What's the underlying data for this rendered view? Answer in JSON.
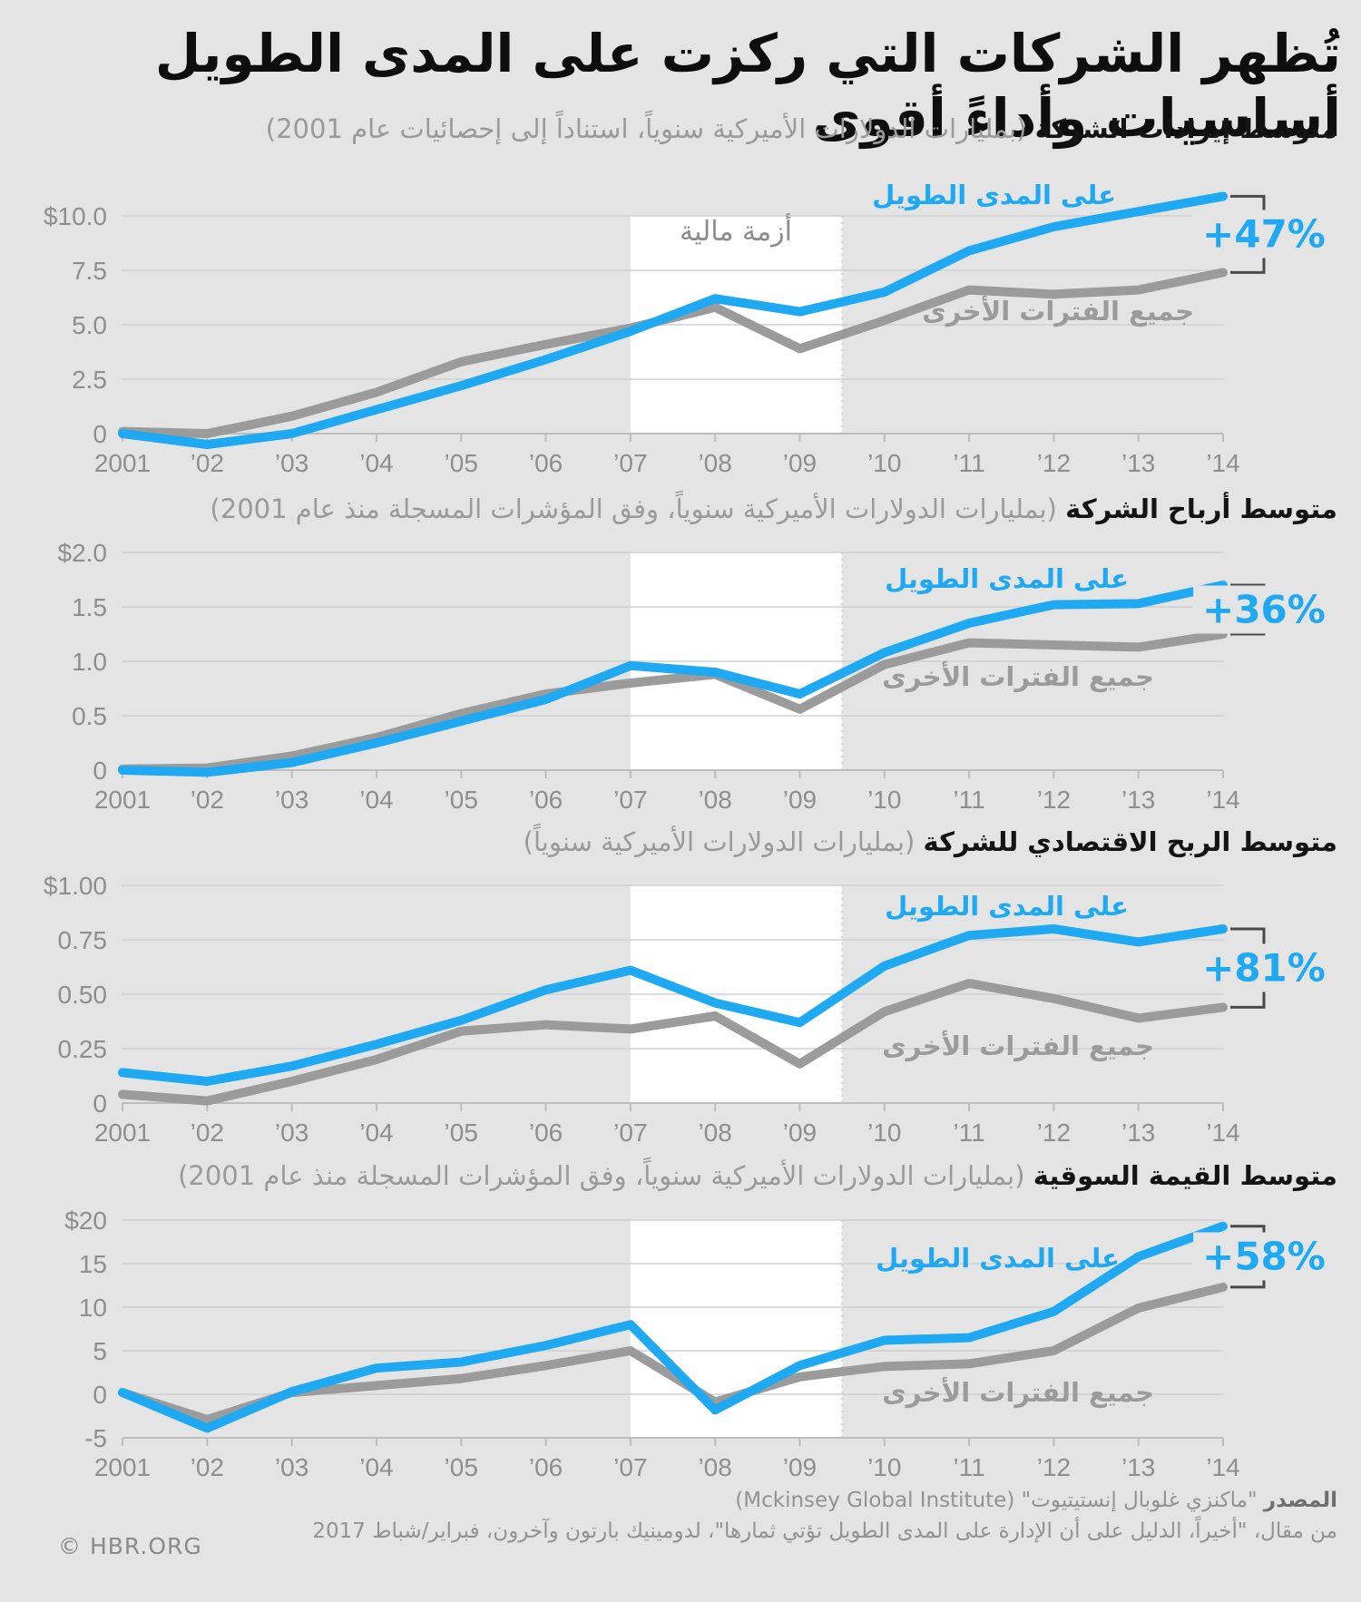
{
  "title": "تُظهر الشركات التي ركزت على المدى الطويل أساسيات وأداءً أقوى",
  "colors": {
    "blue": "#1ea9f2",
    "gray": "#9b9b9b",
    "band": "#ffffff",
    "background": "#e4e4e4",
    "gridline": "#d0d0d0",
    "axis": "#bdbdbd",
    "bracket": "#4a4a4a"
  },
  "chart_data": [
    {
      "type": "line",
      "subtitle_bold": "متوسط إيرادات الشركة",
      "subtitle_note": " (بمليارات الدولارات الأميركية سنوياً، استناداً إلى إحصائيات عام 2001)",
      "x_labels": [
        "2001",
        "’02",
        "’03",
        "’04",
        "’05",
        "’06",
        "’07",
        "’08",
        "’09",
        "’10",
        "’11",
        "’12",
        "’13",
        "’14"
      ],
      "y_ticks": [
        {
          "label": "$10.0",
          "value": 10
        },
        {
          "label": "7.5",
          "value": 7.5
        },
        {
          "label": "5.0",
          "value": 5
        },
        {
          "label": "2.5",
          "value": 2.5
        },
        {
          "label": "0",
          "value": 0
        }
      ],
      "crisis_band": {
        "from_index": 6,
        "to_index": 8.5
      },
      "band_label": "أزمة مالية",
      "series": [
        {
          "name": "على المدى الطويل",
          "color": "blue",
          "values": [
            0,
            -0.5,
            0,
            1.1,
            2.2,
            3.4,
            4.7,
            6.2,
            5.6,
            6.5,
            8.4,
            9.5,
            10.2,
            10.9
          ]
        },
        {
          "name": "جميع الفترات الأخرى",
          "color": "gray",
          "values": [
            0.1,
            0,
            0.8,
            1.9,
            3.3,
            4.1,
            4.85,
            5.8,
            3.9,
            5.2,
            6.6,
            6.4,
            6.6,
            7.4
          ]
        }
      ],
      "delta_label": "+47%"
    },
    {
      "type": "line",
      "subtitle_bold": "متوسط أرباح الشركة",
      "subtitle_note": " (بمليارات الدولارات الأميركية سنوياً، وفق المؤشرات المسجلة منذ عام 2001)",
      "x_labels": [
        "2001",
        "’02",
        "’03",
        "’04",
        "’05",
        "’06",
        "’07",
        "’08",
        "’09",
        "’10",
        "’11",
        "’12",
        "’13",
        "’14"
      ],
      "y_ticks": [
        {
          "label": "$2.0",
          "value": 2
        },
        {
          "label": "1.5",
          "value": 1.5
        },
        {
          "label": "1.0",
          "value": 1
        },
        {
          "label": "0.5",
          "value": 0.5
        },
        {
          "label": "0",
          "value": 0
        }
      ],
      "crisis_band": {
        "from_index": 6,
        "to_index": 8.5
      },
      "series": [
        {
          "name": "على المدى الطويل",
          "color": "blue",
          "values": [
            0,
            -0.02,
            0.07,
            0.25,
            0.45,
            0.65,
            0.96,
            0.9,
            0.7,
            1.08,
            1.35,
            1.52,
            1.53,
            1.7
          ]
        },
        {
          "name": "جميع الفترات الأخرى",
          "color": "gray",
          "values": [
            0.01,
            0.02,
            0.13,
            0.3,
            0.52,
            0.7,
            0.8,
            0.88,
            0.56,
            0.97,
            1.17,
            1.15,
            1.13,
            1.25
          ]
        }
      ],
      "delta_label": "+36%"
    },
    {
      "type": "line",
      "subtitle_bold": "متوسط الربح الاقتصادي للشركة",
      "subtitle_note": " (بمليارات الدولارات الأميركية سنوياً)",
      "x_labels": [
        "2001",
        "’02",
        "’03",
        "’04",
        "’05",
        "’06",
        "’07",
        "’08",
        "’09",
        "’10",
        "’11",
        "’12",
        "’13",
        "’14"
      ],
      "y_ticks": [
        {
          "label": "$1.00",
          "value": 1
        },
        {
          "label": "0.75",
          "value": 0.75
        },
        {
          "label": "0.50",
          "value": 0.5
        },
        {
          "label": "0.25",
          "value": 0.25
        },
        {
          "label": "0",
          "value": 0
        }
      ],
      "crisis_band": {
        "from_index": 6,
        "to_index": 8.5
      },
      "series": [
        {
          "name": "على المدى الطويل",
          "color": "blue",
          "values": [
            0.14,
            0.1,
            0.17,
            0.27,
            0.38,
            0.52,
            0.61,
            0.46,
            0.37,
            0.63,
            0.77,
            0.8,
            0.74,
            0.8
          ]
        },
        {
          "name": "جميع الفترات الأخرى",
          "color": "gray",
          "values": [
            0.04,
            0.01,
            0.1,
            0.2,
            0.33,
            0.36,
            0.34,
            0.4,
            0.18,
            0.42,
            0.55,
            0.48,
            0.39,
            0.44
          ]
        }
      ],
      "delta_label": "+81%"
    },
    {
      "type": "line",
      "subtitle_bold": "متوسط القيمة السوقية",
      "subtitle_note": " (بمليارات الدولارات الأميركية سنوياً، وفق المؤشرات المسجلة منذ عام 2001)",
      "x_labels": [
        "2001",
        "’02",
        "’03",
        "’04",
        "’05",
        "’06",
        "’07",
        "’08",
        "’09",
        "’10",
        "’11",
        "’12",
        "’13",
        "’14"
      ],
      "y_ticks": [
        {
          "label": "$20",
          "value": 20
        },
        {
          "label": "15",
          "value": 15
        },
        {
          "label": "10",
          "value": 10
        },
        {
          "label": "5",
          "value": 5
        },
        {
          "label": "0",
          "value": 0
        },
        {
          "label": "-5",
          "value": -5
        }
      ],
      "crisis_band": {
        "from_index": 6,
        "to_index": 8.5
      },
      "series": [
        {
          "name": "على المدى الطويل",
          "color": "blue",
          "values": [
            0.2,
            -3.9,
            0.3,
            3,
            3.7,
            5.6,
            8,
            -1.8,
            3.3,
            6.2,
            6.5,
            9.5,
            15.8,
            19.3
          ]
        },
        {
          "name": "جميع الفترات الأخرى",
          "color": "gray",
          "values": [
            0.2,
            -2.9,
            0.2,
            1,
            1.8,
            3.3,
            5,
            -0.9,
            2,
            3.2,
            3.5,
            5,
            9.9,
            12.3
          ]
        }
      ],
      "delta_label": "+58%"
    }
  ],
  "footer": {
    "source_label": "المصدر",
    "source_text": " \"ماكنزي غلوبال إنستيتيوت\" (Mckinsey Global Institute)",
    "article_line": "من مقال، \"أخيراً، الدليل على أن الإدارة على المدى الطويل تؤتي ثمارها\"، لدومينيك بارتون وآخرون، فبراير/شباط 2017",
    "copyright": "© HBR.ORG"
  }
}
